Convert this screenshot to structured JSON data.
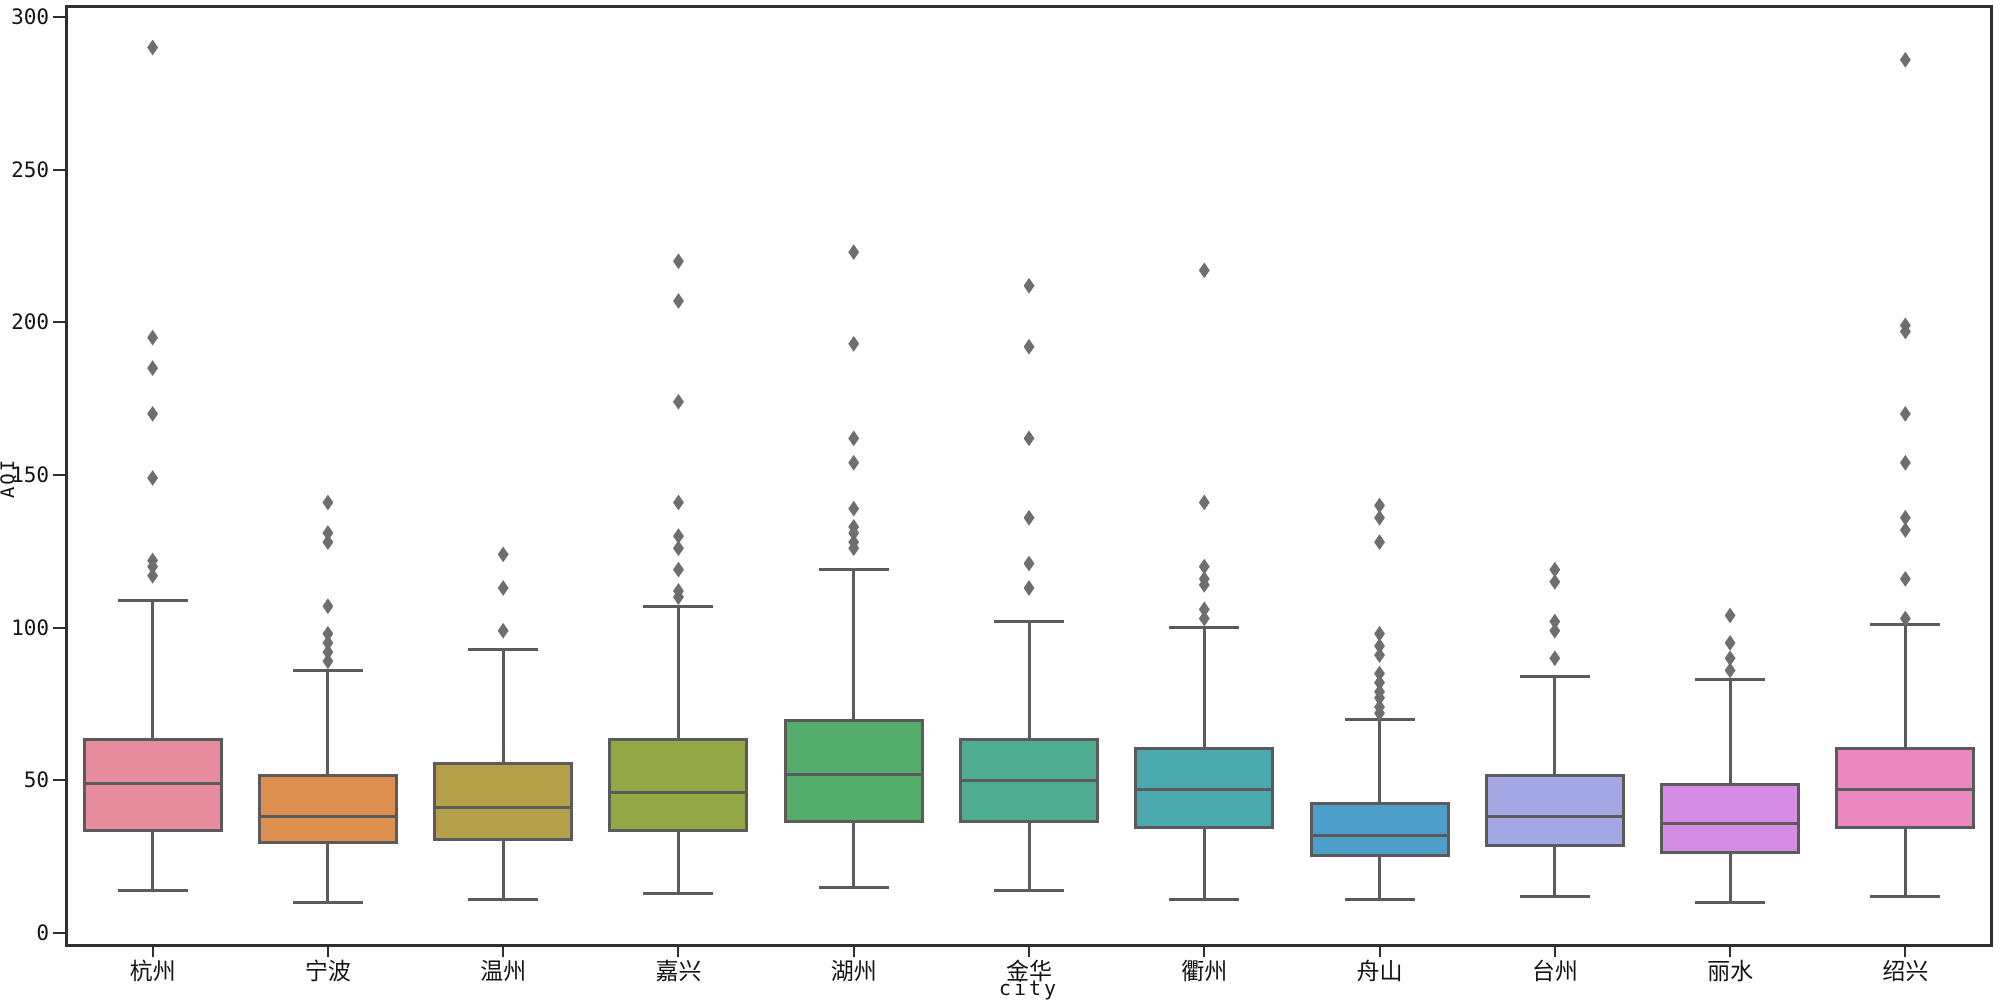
{
  "chart_data": {
    "type": "boxplot",
    "xlabel": "city",
    "ylabel": "AQI",
    "ylim": [
      0,
      300
    ],
    "yticks": [
      0,
      50,
      100,
      150,
      200,
      250,
      300
    ],
    "grid": false,
    "legend": "none",
    "categories": [
      "杭州",
      "宁波",
      "温州",
      "嘉兴",
      "湖州",
      "金华",
      "衢州",
      "舟山",
      "台州",
      "丽水",
      "绍兴"
    ],
    "box_border_color": "#5b5b5b",
    "outlier_color": "#6e6e6e",
    "cities": [
      {
        "label": "杭州",
        "color": "#e78c9d",
        "whisker_low": 14,
        "q1": 33,
        "median": 49,
        "q3": 64,
        "whisker_high": 109,
        "outliers": [
          117,
          120,
          122,
          149,
          170,
          185,
          195,
          290
        ]
      },
      {
        "label": "宁波",
        "color": "#dc8f4e",
        "whisker_low": 10,
        "q1": 29,
        "median": 38,
        "q3": 52,
        "whisker_high": 86,
        "outliers": [
          89,
          92,
          95,
          98,
          107,
          128,
          131,
          141
        ]
      },
      {
        "label": "温州",
        "color": "#b5a04a",
        "whisker_low": 11,
        "q1": 30,
        "median": 41,
        "q3": 56,
        "whisker_high": 93,
        "outliers": [
          99,
          113,
          124
        ]
      },
      {
        "label": "嘉兴",
        "color": "#93a845",
        "whisker_low": 13,
        "q1": 33,
        "median": 46,
        "q3": 64,
        "whisker_high": 107,
        "outliers": [
          110,
          112,
          119,
          126,
          130,
          141,
          174,
          207,
          220
        ]
      },
      {
        "label": "湖州",
        "color": "#55ad6c",
        "whisker_low": 15,
        "q1": 36,
        "median": 52,
        "q3": 70,
        "whisker_high": 119,
        "outliers": [
          126,
          128,
          131,
          133,
          139,
          154,
          162,
          193,
          223
        ]
      },
      {
        "label": "金华",
        "color": "#4ead90",
        "whisker_low": 14,
        "q1": 36,
        "median": 50,
        "q3": 64,
        "whisker_high": 102,
        "outliers": [
          113,
          121,
          136,
          162,
          192,
          212
        ]
      },
      {
        "label": "衢州",
        "color": "#4ba9ad",
        "whisker_low": 11,
        "q1": 34,
        "median": 47,
        "q3": 61,
        "whisker_high": 100,
        "outliers": [
          103,
          106,
          114,
          116,
          120,
          141,
          217
        ]
      },
      {
        "label": "舟山",
        "color": "#4d9fc9",
        "whisker_low": 11,
        "q1": 25,
        "median": 32,
        "q3": 43,
        "whisker_high": 70,
        "outliers": [
          72,
          74,
          77,
          79,
          82,
          85,
          91,
          94,
          98,
          128,
          136,
          140
        ]
      },
      {
        "label": "台州",
        "color": "#a3a7e4",
        "whisker_low": 12,
        "q1": 28,
        "median": 38,
        "q3": 52,
        "whisker_high": 84,
        "outliers": [
          90,
          99,
          102,
          115,
          119
        ]
      },
      {
        "label": "丽水",
        "color": "#d58ce5",
        "whisker_low": 10,
        "q1": 26,
        "median": 36,
        "q3": 49,
        "whisker_high": 83,
        "outliers": [
          86,
          90,
          95,
          104
        ]
      },
      {
        "label": "绍兴",
        "color": "#ea87c0",
        "whisker_low": 12,
        "q1": 34,
        "median": 47,
        "q3": 61,
        "whisker_high": 101,
        "outliers": [
          103,
          116,
          132,
          136,
          154,
          170,
          197,
          199,
          286
        ]
      }
    ]
  }
}
